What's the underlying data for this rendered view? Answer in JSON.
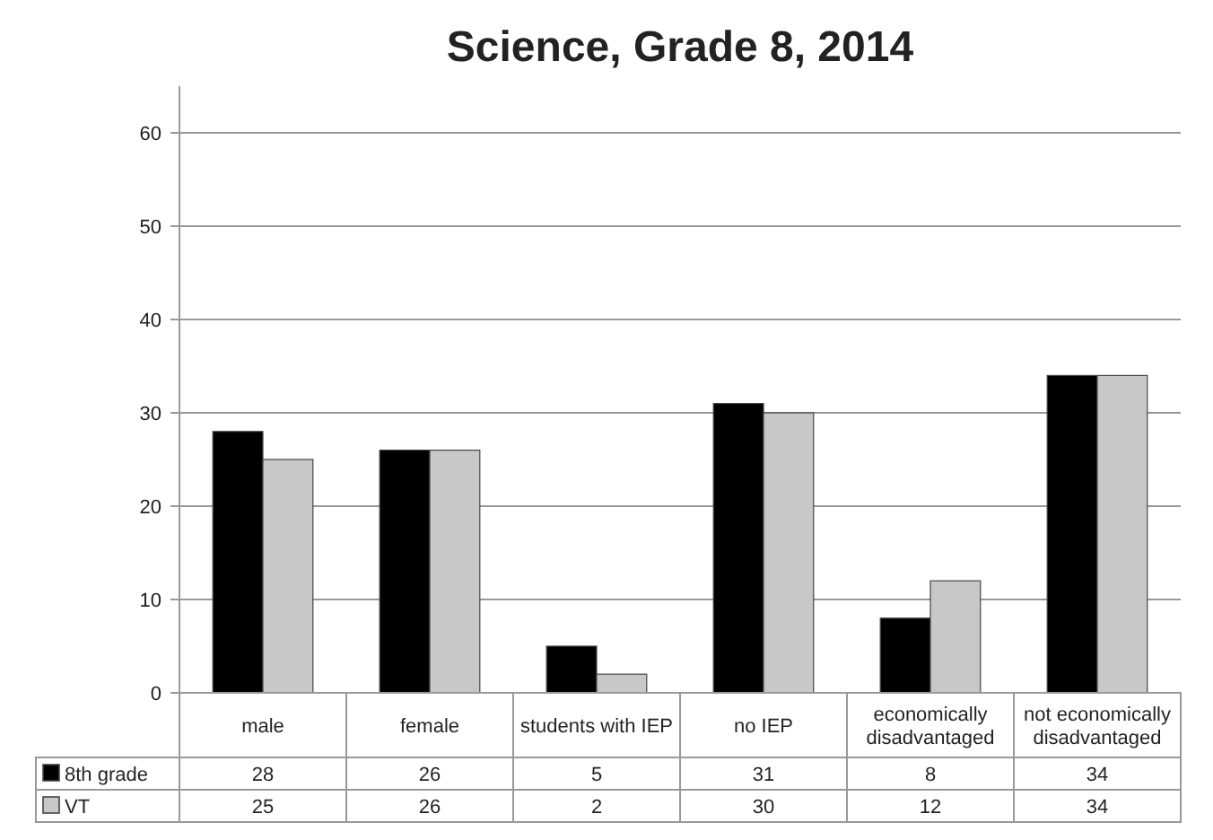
{
  "chart_data": {
    "type": "bar",
    "title": "Science, Grade 8, 2014",
    "categories": [
      "male",
      "female",
      "students with IEP",
      "no IEP",
      "economically disadvantaged",
      "not economically disadvantaged"
    ],
    "series": [
      {
        "name": "8th grade",
        "color": "#000000",
        "values": [
          28,
          26,
          5,
          31,
          8,
          34
        ]
      },
      {
        "name": "VT",
        "color": "#c8c8c8",
        "values": [
          25,
          26,
          2,
          30,
          12,
          34
        ]
      }
    ],
    "ylim": [
      0,
      65
    ],
    "yticks": [
      0,
      10,
      20,
      30,
      40,
      50,
      60
    ],
    "grid": "y",
    "legend": "bottom",
    "data_labels": true
  }
}
